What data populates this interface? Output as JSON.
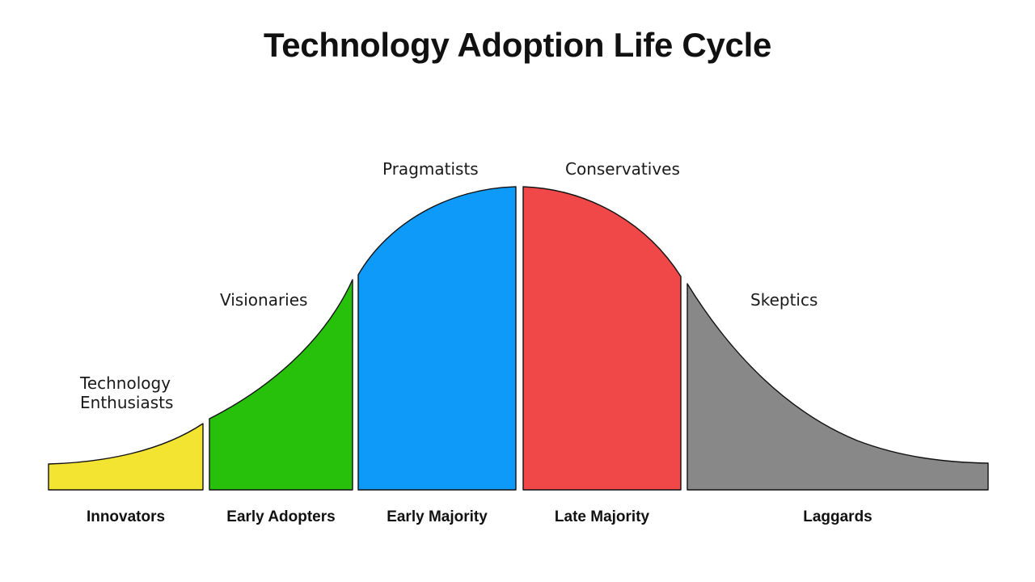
{
  "title": "Technology Adoption Life Cycle",
  "segments": [
    {
      "name": "Innovators",
      "psychographic": [
        "Technology",
        "Enthusiasts"
      ],
      "color": "#f2e431"
    },
    {
      "name": "Early Adopters",
      "psychographic": [
        "Visionaries"
      ],
      "color": "#27c00a"
    },
    {
      "name": "Early Majority",
      "psychographic": [
        "Pragmatists"
      ],
      "color": "#0e9af8"
    },
    {
      "name": "Late Majority",
      "psychographic": [
        "Conservatives"
      ],
      "color": "#f04849"
    },
    {
      "name": "Laggards",
      "psychographic": [
        "Skeptics"
      ],
      "color": "#888888"
    }
  ]
}
